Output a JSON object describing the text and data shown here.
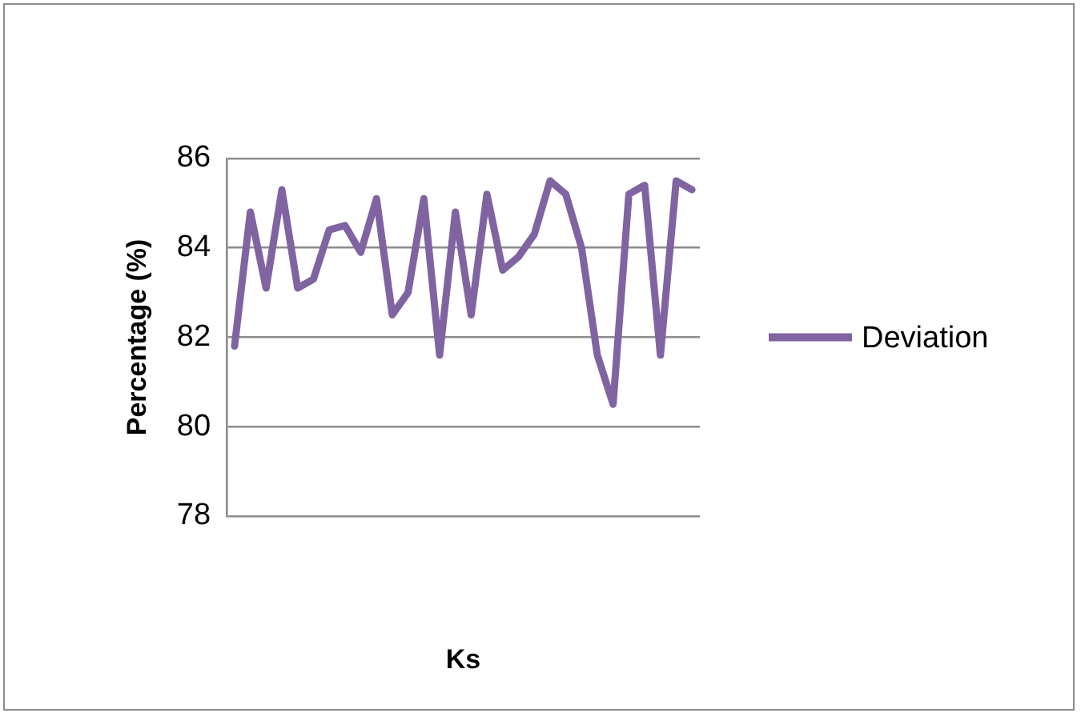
{
  "chart_data": {
    "type": "line",
    "xlabel": "Ks",
    "ylabel": "Percentage (%)",
    "categories": [
      null,
      null,
      null,
      null,
      null,
      null,
      null,
      null,
      null,
      null,
      null,
      null,
      null,
      null,
      null,
      null,
      null,
      null,
      null,
      null,
      null,
      null,
      null,
      null,
      null,
      null,
      null,
      null,
      null,
      null
    ],
    "series": [
      {
        "name": "Deviation",
        "color": "#8064a2",
        "values": [
          81.8,
          84.8,
          83.1,
          85.3,
          83.1,
          83.3,
          84.4,
          84.5,
          83.9,
          85.1,
          82.5,
          83.0,
          85.1,
          81.6,
          84.8,
          82.5,
          85.2,
          83.5,
          83.8,
          84.3,
          85.5,
          85.2,
          84.0,
          81.6,
          80.5,
          85.2,
          85.4,
          81.6,
          85.5,
          85.3
        ]
      }
    ],
    "ylim": [
      78,
      86
    ],
    "yticks": [
      78,
      80,
      82,
      84,
      86
    ],
    "grid": "y",
    "legend": "right",
    "marker": "none",
    "line_style": "solid"
  }
}
